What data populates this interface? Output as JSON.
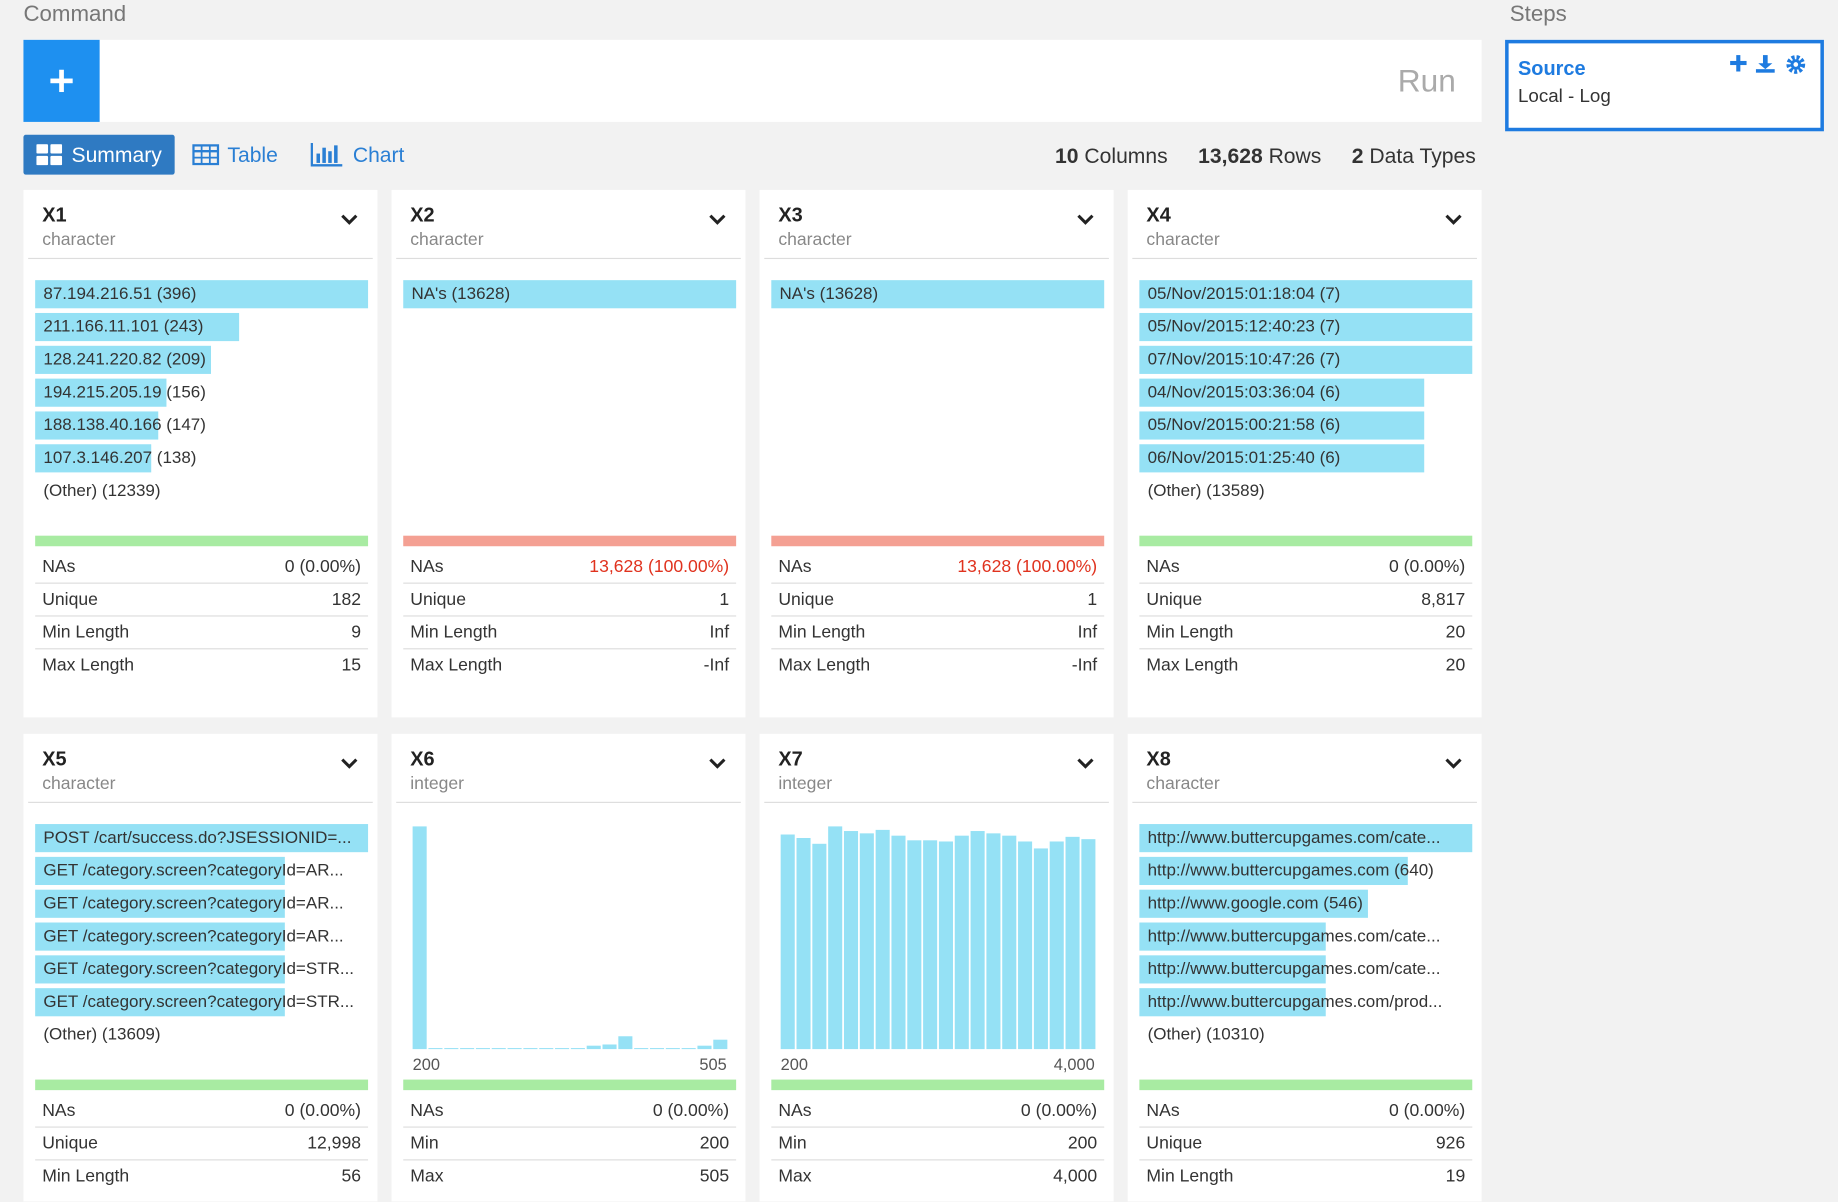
{
  "header": {
    "command_label": "Command",
    "run": "Run",
    "steps_label": "Steps"
  },
  "tabs": [
    "Summary",
    "Table",
    "Chart"
  ],
  "active_tab": 0,
  "stats": [
    {
      "value": "10",
      "label": "Columns"
    },
    {
      "value": "13,628",
      "label": "Rows"
    },
    {
      "value": "2",
      "label": "Data Types"
    }
  ],
  "step": {
    "title": "Source",
    "subtitle": "Local - Log"
  },
  "cards": [
    {
      "name": "X1",
      "type": "character",
      "items": [
        {
          "text": "87.194.216.51 (396)",
          "count": 396
        },
        {
          "text": "211.166.11.101 (243)",
          "count": 243
        },
        {
          "text": "128.241.220.82 (209)",
          "count": 209
        },
        {
          "text": "194.215.205.19 (156)",
          "count": 156
        },
        {
          "text": "188.138.40.166 (147)",
          "count": 147
        },
        {
          "text": "107.3.146.207 (138)",
          "count": 138
        }
      ],
      "other": "(Other) (12339)",
      "na_bar_color": "#a8eba2",
      "stats": [
        [
          "NAs",
          "0 (0.00%)"
        ],
        [
          "Unique",
          "182"
        ],
        [
          "Min Length",
          "9"
        ],
        [
          "Max Length",
          "15"
        ]
      ]
    },
    {
      "name": "X2",
      "type": "character",
      "items": [
        {
          "text": "NA's (13628)",
          "count": 13628
        }
      ],
      "na_bar_color": "#f4a093",
      "na_alert": true,
      "stats": [
        [
          "NAs",
          "13,628 (100.00%)"
        ],
        [
          "Unique",
          "1"
        ],
        [
          "Min Length",
          "Inf"
        ],
        [
          "Max Length",
          "-Inf"
        ]
      ]
    },
    {
      "name": "X3",
      "type": "character",
      "items": [
        {
          "text": "NA's (13628)",
          "count": 13628
        }
      ],
      "na_bar_color": "#f4a093",
      "na_alert": true,
      "stats": [
        [
          "NAs",
          "13,628 (100.00%)"
        ],
        [
          "Unique",
          "1"
        ],
        [
          "Min Length",
          "Inf"
        ],
        [
          "Max Length",
          "-Inf"
        ]
      ]
    },
    {
      "name": "X4",
      "type": "character",
      "items": [
        {
          "text": "05/Nov/2015:01:18:04 (7)",
          "count": 7
        },
        {
          "text": "05/Nov/2015:12:40:23 (7)",
          "count": 7
        },
        {
          "text": "07/Nov/2015:10:47:26 (7)",
          "count": 7
        },
        {
          "text": "04/Nov/2015:03:36:04 (6)",
          "count": 6
        },
        {
          "text": "05/Nov/2015:00:21:58 (6)",
          "count": 6
        },
        {
          "text": "06/Nov/2015:01:25:40 (6)",
          "count": 6
        }
      ],
      "other": "(Other) (13589)",
      "na_bar_color": "#a8eba2",
      "stats": [
        [
          "NAs",
          "0 (0.00%)"
        ],
        [
          "Unique",
          "8,817"
        ],
        [
          "Min Length",
          "20"
        ],
        [
          "Max Length",
          "20"
        ]
      ]
    },
    {
      "name": "X5",
      "type": "character",
      "items": [
        {
          "text": "POST /cart/success.do?JSESSIONID=...",
          "count": 4
        },
        {
          "text": "GET /category.screen?categoryId=AR...",
          "count": 3
        },
        {
          "text": "GET /category.screen?categoryId=AR...",
          "count": 3
        },
        {
          "text": "GET /category.screen?categoryId=AR...",
          "count": 3
        },
        {
          "text": "GET /category.screen?categoryId=STR...",
          "count": 3
        },
        {
          "text": "GET /category.screen?categoryId=STR...",
          "count": 3
        }
      ],
      "other": "(Other) (13609)",
      "na_bar_color": "#a8eba2",
      "stats": [
        [
          "NAs",
          "0 (0.00%)"
        ],
        [
          "Unique",
          "12,998"
        ],
        [
          "Min Length",
          "56"
        ]
      ]
    },
    {
      "name": "X6",
      "type": "integer",
      "histogram": {
        "values": [
          13000,
          60,
          60,
          60,
          60,
          60,
          60,
          60,
          60,
          60,
          60,
          200,
          270,
          750,
          60,
          60,
          60,
          60,
          200,
          550
        ],
        "axis_labels": [
          "200",
          "505"
        ],
        "color": "#95e1f5"
      },
      "na_bar_color": "#a8eba2",
      "stats": [
        [
          "NAs",
          "0 (0.00%)"
        ],
        [
          "Min",
          "200"
        ],
        [
          "Max",
          "505"
        ]
      ]
    },
    {
      "name": "X7",
      "type": "integer",
      "histogram": {
        "values": [
          185,
          182,
          177,
          192,
          188,
          186,
          189,
          184,
          180,
          180,
          179,
          184,
          188,
          186,
          184,
          179,
          173,
          179,
          183,
          181
        ],
        "axis_labels": [
          "200",
          "4,000"
        ],
        "color": "#95e1f5"
      },
      "na_bar_color": "#a8eba2",
      "stats": [
        [
          "NAs",
          "0 (0.00%)"
        ],
        [
          "Min",
          "200"
        ],
        [
          "Max",
          "4,000"
        ]
      ]
    },
    {
      "name": "X8",
      "type": "character",
      "items": [
        {
          "text": "http://www.buttercupgames.com/cate...",
          "count": 795
        },
        {
          "text": "http://www.buttercupgames.com (640)",
          "count": 640
        },
        {
          "text": "http://www.google.com (546)",
          "count": 546
        },
        {
          "text": "http://www.buttercupgames.com/cate...",
          "count": 446
        },
        {
          "text": "http://www.buttercupgames.com/cate...",
          "count": 446
        },
        {
          "text": "http://www.buttercupgames.com/prod...",
          "count": 446
        }
      ],
      "other": "(Other) (10310)",
      "na_bar_color": "#a8eba2",
      "stats": [
        [
          "NAs",
          "0 (0.00%)"
        ],
        [
          "Unique",
          "926"
        ],
        [
          "Min Length",
          "19"
        ]
      ]
    }
  ]
}
